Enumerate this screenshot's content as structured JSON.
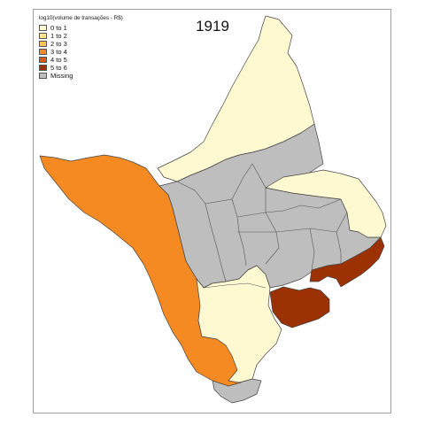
{
  "map": {
    "title": "1919",
    "legend": {
      "title": "log10(volume de transações - R$)",
      "items": [
        {
          "label": "0 to 1",
          "color": "#fff9d2"
        },
        {
          "label": "1 to 2",
          "color": "#fee391"
        },
        {
          "label": "2 to 3",
          "color": "#fec44f"
        },
        {
          "label": "3 to 4",
          "color": "#f68a22"
        },
        {
          "label": "4 to 5",
          "color": "#d45a0f"
        },
        {
          "label": "5 to 6",
          "color": "#9c3203"
        },
        {
          "label": "Missing",
          "color": "#bebebe"
        }
      ]
    },
    "regions": [
      {
        "id": "north",
        "class": "0 to 1"
      },
      {
        "id": "northeast",
        "class": "0 to 1"
      },
      {
        "id": "west",
        "class": "3 to 4"
      },
      {
        "id": "interior",
        "class": "Missing"
      },
      {
        "id": "south-central",
        "class": "0 to 1"
      },
      {
        "id": "southeast-coast",
        "class": "5 to 6"
      },
      {
        "id": "macapa",
        "class": "5 to 6"
      },
      {
        "id": "south",
        "class": "Missing"
      }
    ]
  }
}
